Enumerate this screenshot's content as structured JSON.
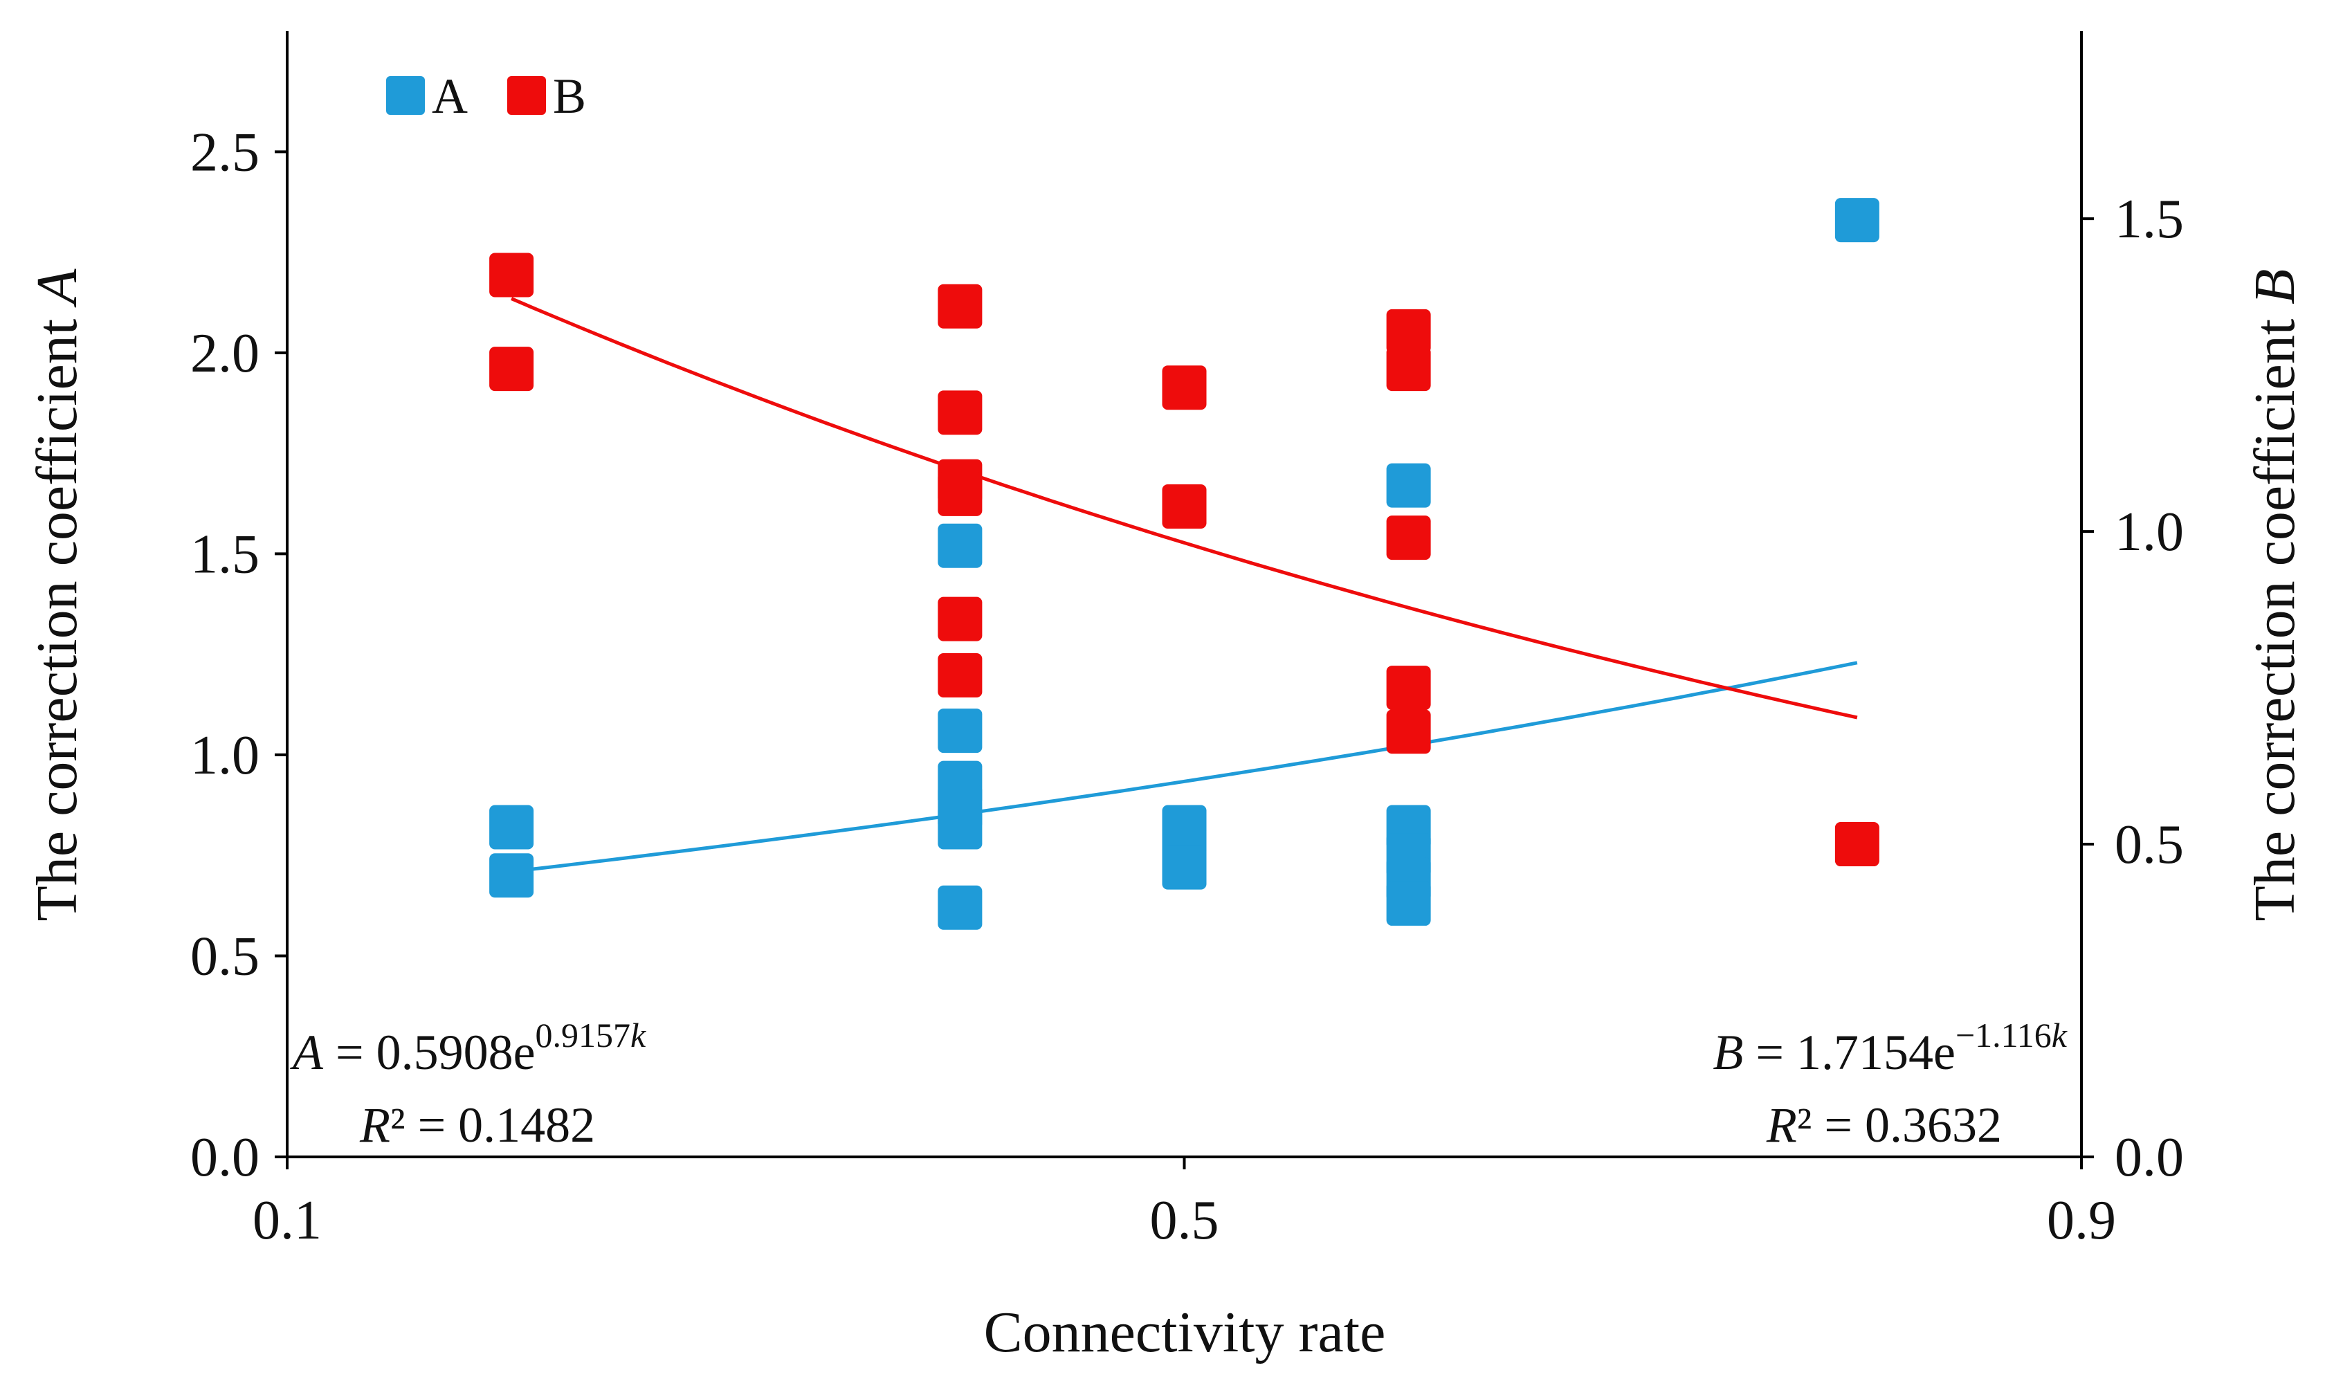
{
  "chart_data": {
    "type": "scatter",
    "xlabel": "Connectivity rate",
    "ylabel_left": {
      "text": "The correction coefficient ",
      "var": "A"
    },
    "ylabel_right": {
      "text": "The correction coefficient ",
      "var": "B"
    },
    "xlim": [
      0.1,
      0.9
    ],
    "ylim_left": [
      0.0,
      2.8
    ],
    "ylim_right": [
      0.0,
      1.8
    ],
    "x_ticks": [
      "0.1",
      "0.5",
      "0.9"
    ],
    "y_ticks_left": [
      "0.0",
      "0.5",
      "1.0",
      "1.5",
      "2.0",
      "2.5"
    ],
    "y_ticks_right": [
      "0.0",
      "0.5",
      "1.0",
      "1.5"
    ],
    "legend": [
      {
        "name": "A",
        "color": "#1f9bd8"
      },
      {
        "name": "B",
        "color": "#ee0c0c"
      }
    ],
    "series": [
      {
        "name": "A",
        "axis": "left",
        "color": "#1f9bd8",
        "points": [
          {
            "x": 0.2,
            "y": 0.82
          },
          {
            "x": 0.2,
            "y": 0.7
          },
          {
            "x": 0.4,
            "y": 1.52
          },
          {
            "x": 0.4,
            "y": 1.06
          },
          {
            "x": 0.4,
            "y": 0.93
          },
          {
            "x": 0.4,
            "y": 0.87
          },
          {
            "x": 0.4,
            "y": 0.82
          },
          {
            "x": 0.4,
            "y": 0.62
          },
          {
            "x": 0.5,
            "y": 0.82
          },
          {
            "x": 0.5,
            "y": 0.77
          },
          {
            "x": 0.5,
            "y": 0.72
          },
          {
            "x": 0.6,
            "y": 1.67
          },
          {
            "x": 0.6,
            "y": 0.82
          },
          {
            "x": 0.6,
            "y": 0.75
          },
          {
            "x": 0.6,
            "y": 0.69
          },
          {
            "x": 0.6,
            "y": 0.63
          },
          {
            "x": 0.8,
            "y": 2.33
          }
        ],
        "trend": {
          "type": "exponential",
          "a": 0.5908,
          "b": 0.9157,
          "x_range": [
            0.2,
            0.8
          ]
        }
      },
      {
        "name": "B",
        "axis": "right",
        "color": "#ee0c0c",
        "points": [
          {
            "x": 0.2,
            "y": 1.41
          },
          {
            "x": 0.2,
            "y": 1.26
          },
          {
            "x": 0.4,
            "y": 1.36
          },
          {
            "x": 0.4,
            "y": 1.19
          },
          {
            "x": 0.4,
            "y": 1.08
          },
          {
            "x": 0.4,
            "y": 1.06
          },
          {
            "x": 0.4,
            "y": 0.86
          },
          {
            "x": 0.4,
            "y": 0.77
          },
          {
            "x": 0.5,
            "y": 1.23
          },
          {
            "x": 0.5,
            "y": 1.04
          },
          {
            "x": 0.6,
            "y": 1.32
          },
          {
            "x": 0.6,
            "y": 1.26
          },
          {
            "x": 0.6,
            "y": 0.99
          },
          {
            "x": 0.6,
            "y": 0.75
          },
          {
            "x": 0.6,
            "y": 0.68
          },
          {
            "x": 0.8,
            "y": 0.5
          }
        ],
        "trend": {
          "type": "exponential",
          "a": 1.7154,
          "b": -1.116,
          "x_range": [
            0.2,
            0.8
          ]
        }
      }
    ],
    "annotations": {
      "eq_A": {
        "var": "A",
        "rhs": " = 0.5908e",
        "exp": "0.9157",
        "exp_var": "k"
      },
      "r2_A": {
        "var": "R",
        "rhs": "² = 0.1482"
      },
      "eq_B": {
        "var": "B",
        "rhs": " = 1.7154e",
        "exp": "−1.116",
        "exp_var": "k"
      },
      "r2_B": {
        "var": "R",
        "rhs": "² = 0.3632"
      }
    }
  }
}
